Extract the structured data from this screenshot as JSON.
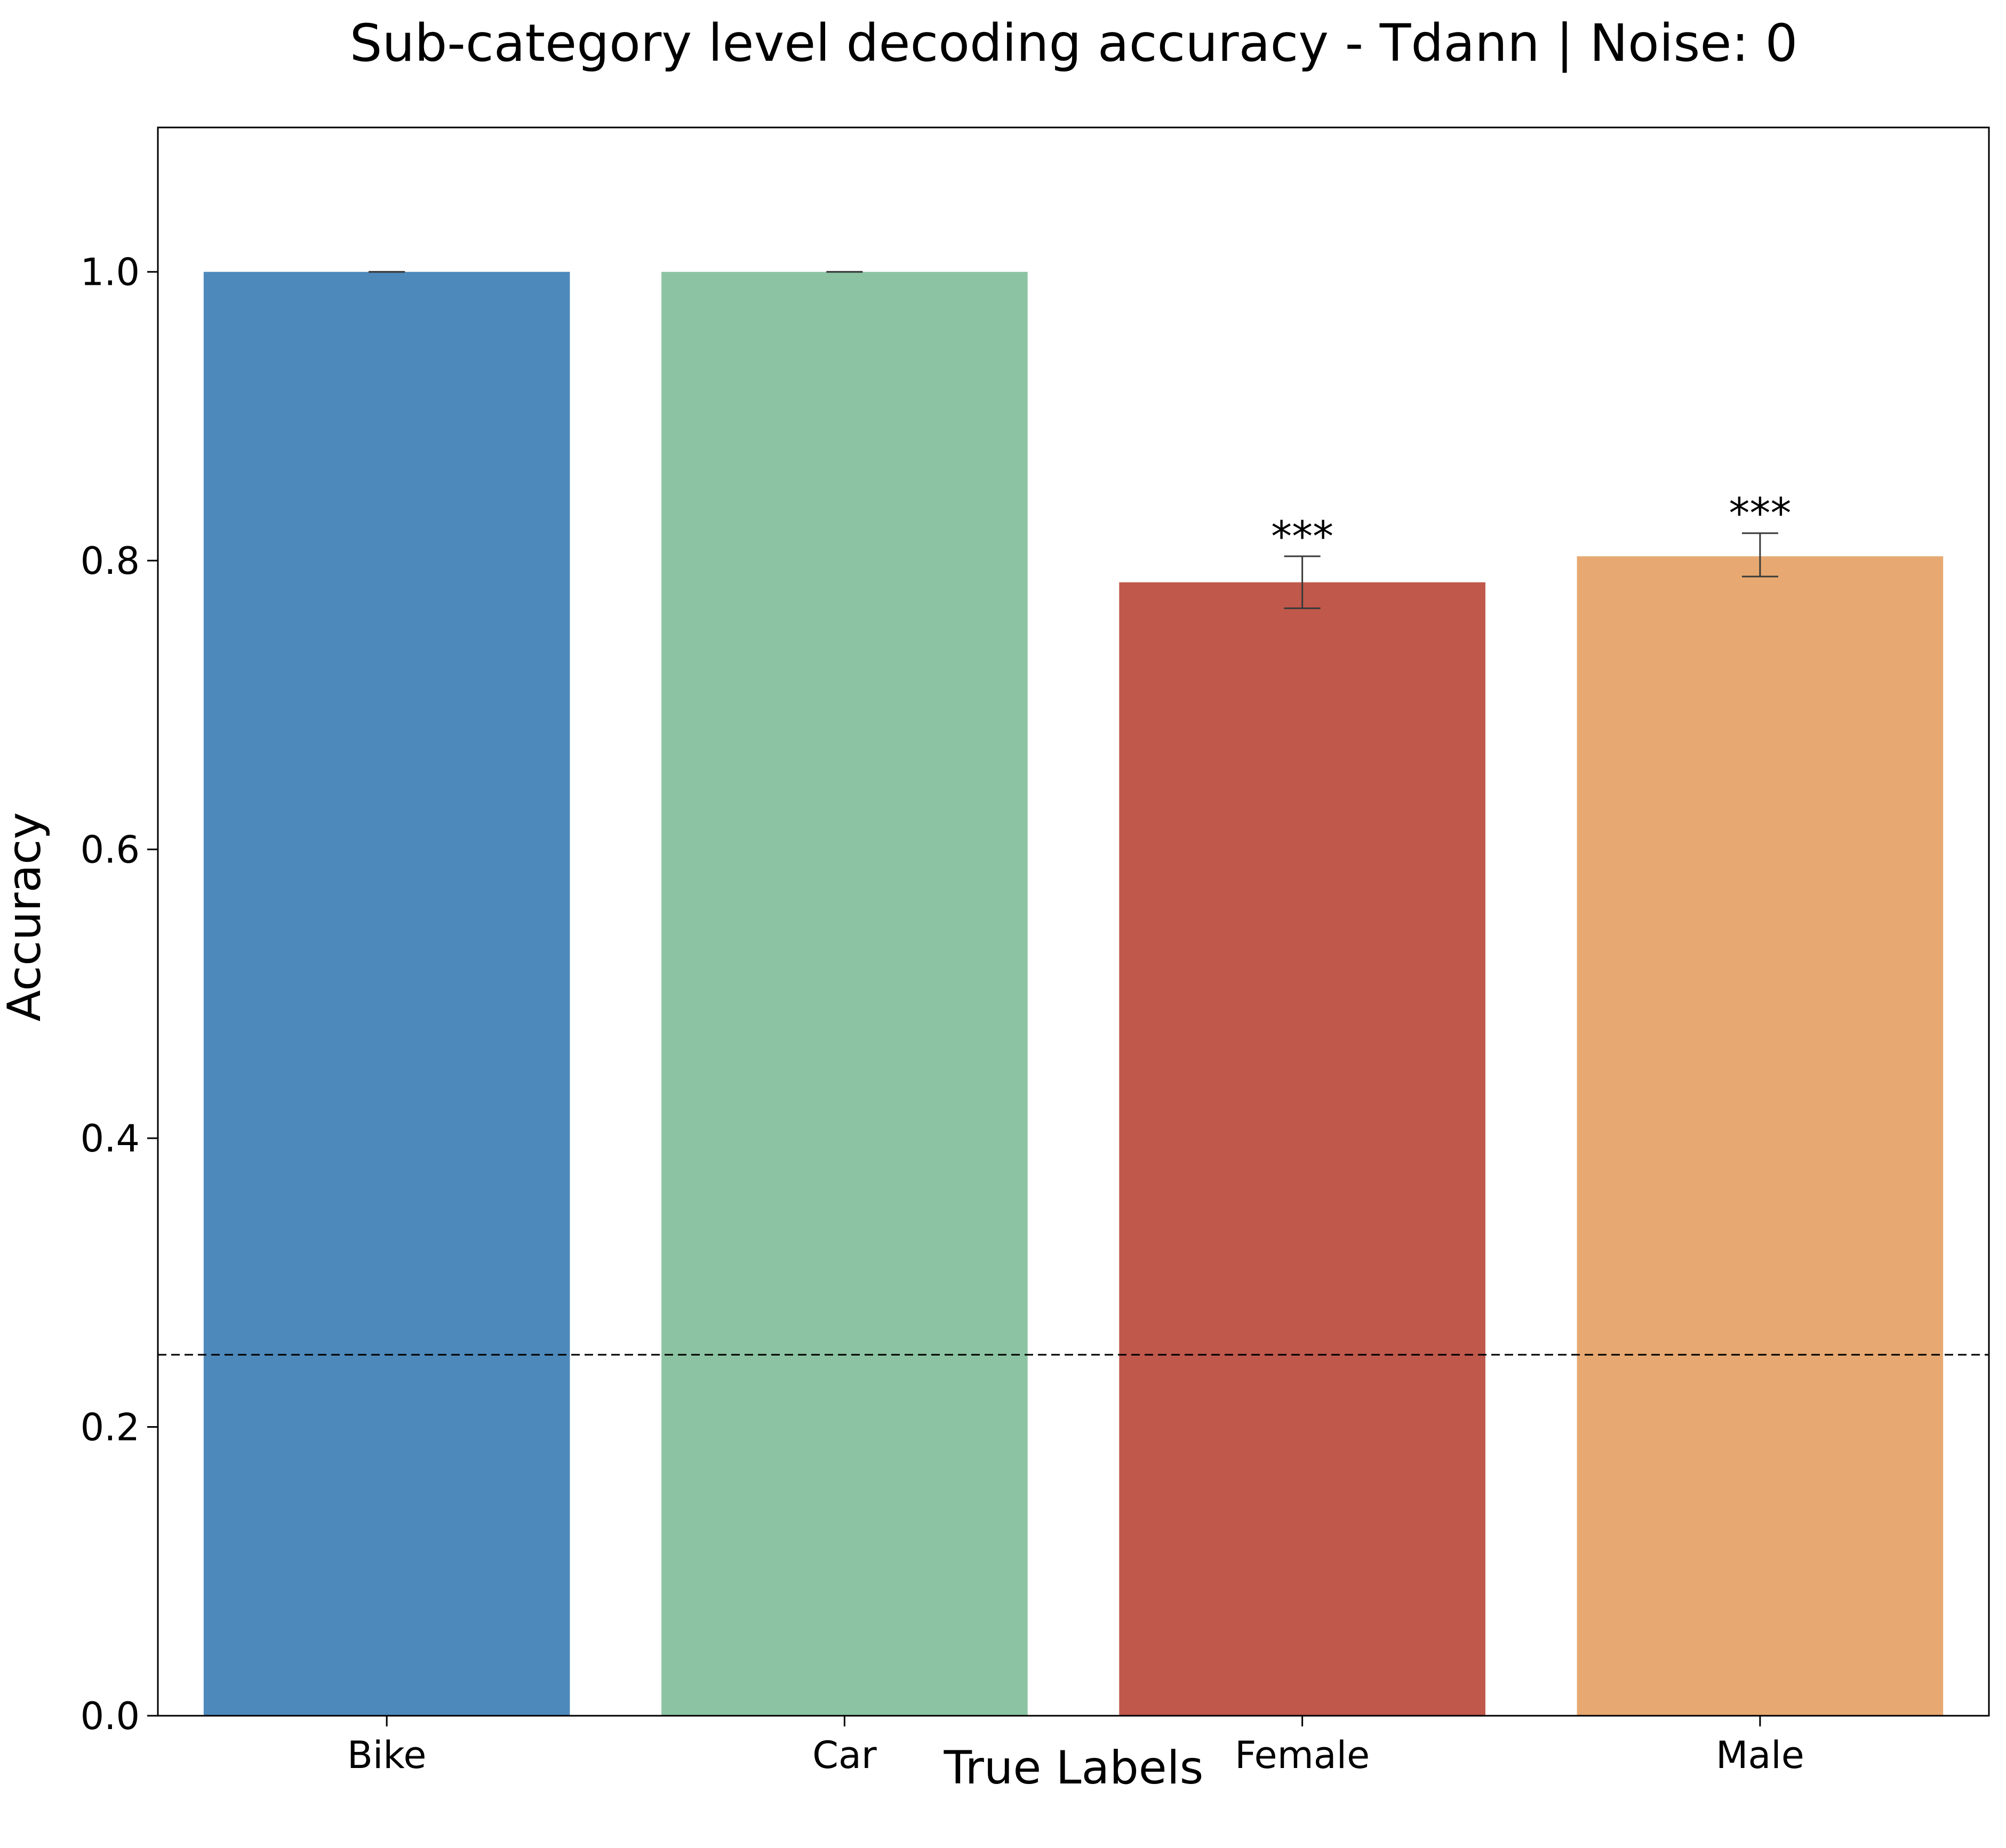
{
  "chart_data": {
    "type": "bar",
    "title": "Sub-category level decoding accuracy - Tdann | Noise: 0",
    "xlabel": "True Labels",
    "ylabel": "Accuracy",
    "categories": [
      "Bike",
      "Car",
      "Female",
      "Male"
    ],
    "values": [
      1.0,
      1.0,
      0.785,
      0.803
    ],
    "error_low": [
      1.0,
      1.0,
      0.767,
      0.789
    ],
    "error_high": [
      1.0,
      1.0,
      0.803,
      0.819
    ],
    "colors": [
      "#4e89bc",
      "#8cc4a3",
      "#c0584b",
      "#e7a971"
    ],
    "annotations": [
      "",
      "",
      "***",
      "***"
    ],
    "chance_level": 0.25,
    "ylim": [
      0,
      1.1
    ],
    "yticks": [
      0.0,
      0.2,
      0.4,
      0.6,
      0.8,
      1.0
    ],
    "ytick_labels": [
      "0.0",
      "0.2",
      "0.4",
      "0.6",
      "0.8",
      "1.0"
    ],
    "grid": false,
    "legend": "none"
  }
}
